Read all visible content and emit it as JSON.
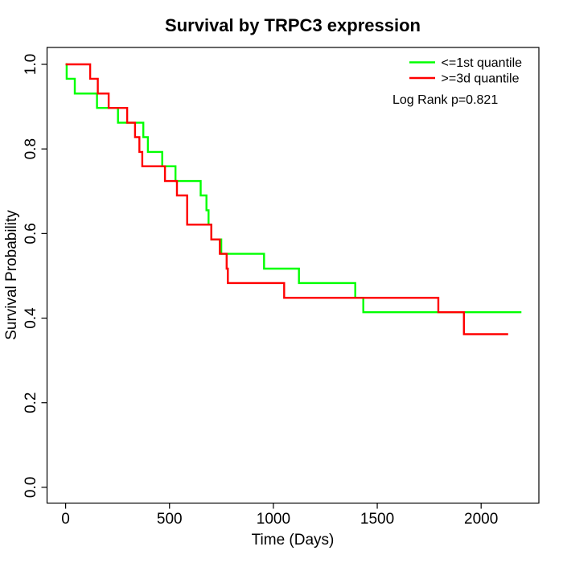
{
  "chart_data": {
    "type": "line",
    "subtype": "kaplan-meier-step",
    "title": "Survival by TRPC3 expression",
    "xlabel": "Time (Days)",
    "ylabel": "Survival Probability",
    "annotation": "Log Rank p=0.821",
    "xlim": [
      0,
      2278
    ],
    "ylim": [
      0,
      1
    ],
    "x_tick_labels": [
      "0",
      "500",
      "1000",
      "1500",
      "2000"
    ],
    "y_tick_labels": [
      "0.0",
      "0.2",
      "0.4",
      "0.6",
      "0.8",
      "1.0"
    ],
    "grid": false,
    "legend_position": "top-right",
    "axis_color": "#000000",
    "background_color": "#ffffff",
    "series": [
      {
        "name": "<=1st quantile",
        "color": "#00FF00",
        "times": [
          0,
          5,
          44,
          151,
          252,
          374,
          396,
          465,
          529,
          650,
          678,
          688,
          701,
          749,
          955,
          1123,
          1394,
          1433
        ],
        "survival": [
          1.0,
          0.966,
          0.931,
          0.897,
          0.862,
          0.828,
          0.793,
          0.759,
          0.724,
          0.69,
          0.655,
          0.621,
          0.586,
          0.552,
          0.517,
          0.483,
          0.448,
          0.414
        ],
        "end_time": 2194
      },
      {
        "name": ">=3d quantile",
        "color": "#FF0000",
        "times": [
          0,
          118,
          155,
          207,
          296,
          334,
          355,
          369,
          478,
          536,
          585,
          701,
          742,
          775,
          781,
          1052,
          1794,
          1917
        ],
        "survival": [
          1.0,
          0.966,
          0.931,
          0.897,
          0.862,
          0.828,
          0.793,
          0.759,
          0.724,
          0.69,
          0.621,
          0.586,
          0.552,
          0.517,
          0.483,
          0.448,
          0.414,
          0.362
        ],
        "end_time": 2130
      }
    ]
  }
}
